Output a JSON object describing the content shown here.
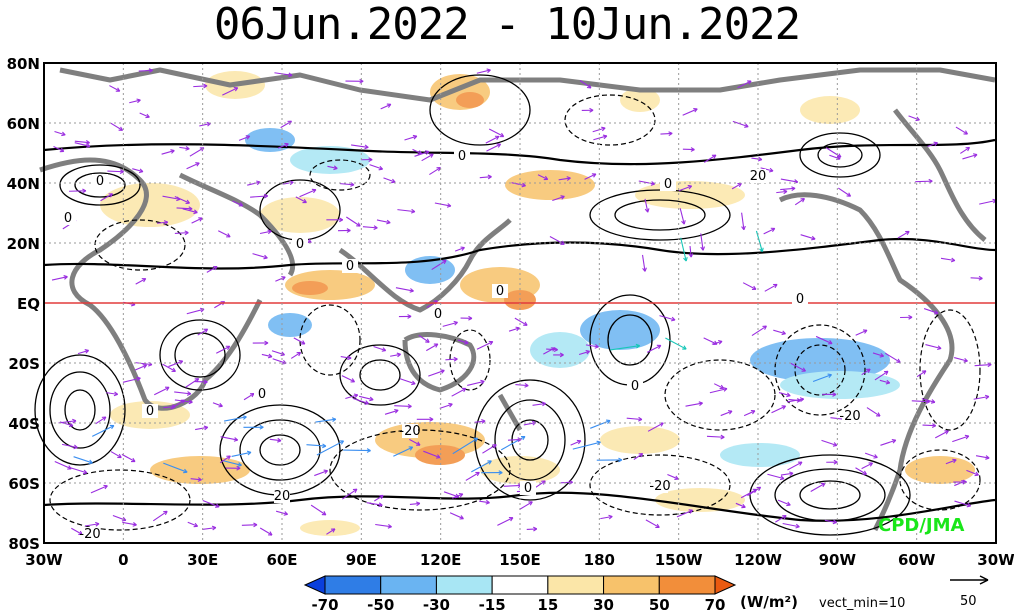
{
  "title": "06Jun.2022 - 10Jun.2022",
  "lat_labels": [
    "80N",
    "60N",
    "40N",
    "20N",
    "EQ",
    "20S",
    "40S",
    "60S",
    "80S"
  ],
  "lon_labels": [
    "30W",
    "0",
    "30E",
    "60E",
    "90E",
    "120E",
    "150E",
    "180",
    "150W",
    "120W",
    "90W",
    "60W",
    "30W"
  ],
  "colorbar": {
    "ticks": [
      "-70",
      "-50",
      "-30",
      "-15",
      "15",
      "30",
      "50",
      "70"
    ],
    "colors": [
      "#0a3fdc",
      "#2f7de6",
      "#6ab4f2",
      "#a8e6f4",
      "#ffffff",
      "#fbe6a8",
      "#f7c26b",
      "#f28e3a",
      "#ea5a10"
    ],
    "unit": "(W/m²)",
    "vect_min": "vect_min=10"
  },
  "vector_ref": {
    "value": "50"
  },
  "credit": "CPD/JMA",
  "contour_labels": [
    "0",
    "0",
    "0",
    "0",
    "0",
    "0",
    "0",
    "0",
    "0",
    "0",
    "20",
    "20",
    "-20",
    "-20",
    "-20",
    "-20",
    "0",
    "0",
    "0"
  ],
  "colors": {
    "coast": "#7f7f7f",
    "equator": "#e23b3b",
    "vector_purple": "#9a2de0",
    "vector_teal": "#16c7b8",
    "vector_blue": "#3a8ef0"
  }
}
